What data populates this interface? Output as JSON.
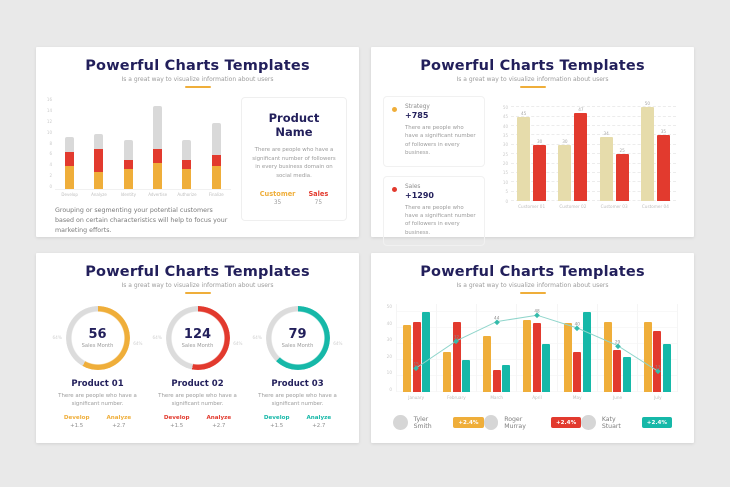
{
  "colors": {
    "navy": "#221F5B",
    "yellow": "#EFAE3A",
    "red": "#E23A2E",
    "tan": "#E6DCAB",
    "teal": "#16B8A8",
    "gray_bar": "#D9D9D9",
    "line": "#8FD5CB",
    "page_bg": "#E9E9E9"
  },
  "header": {
    "title": "Powerful Charts Templates",
    "subtitle": "Is a great way to visualize information about users"
  },
  "slide1": {
    "caption": "Grouping or segmenting your potential customers based on certain characteristics will help to focus your marketing efforts.",
    "panel": {
      "title": "Product Name",
      "description": "There are people who have a significant number of followers in every business domain on social media.",
      "stats": [
        {
          "label": "Customer",
          "value": "35"
        },
        {
          "label": "Sales",
          "value": "75"
        }
      ]
    }
  },
  "slide2": {
    "cards": [
      {
        "label": "Strategy",
        "value": "+785",
        "description": "There are people who have a significant number of followers in every business."
      },
      {
        "label": "Sales",
        "value": "+1290",
        "description": "There are people who have a significant number of followers in every business."
      }
    ]
  },
  "slide3": {
    "gauges": [
      {
        "value": "56",
        "caption": "Sales Month",
        "side_left": "64%",
        "side_right": "64%",
        "product": "Product 01",
        "description": "There are people who have a significant number.",
        "stats": [
          {
            "label": "Develop",
            "value": "+1.5"
          },
          {
            "label": "Analyze",
            "value": "+2.7"
          }
        ]
      },
      {
        "value": "124",
        "caption": "Sales Month",
        "side_left": "64%",
        "side_right": "64%",
        "product": "Product 02",
        "description": "There are people who have a significant number.",
        "stats": [
          {
            "label": "Develop",
            "value": "+1.5"
          },
          {
            "label": "Analyze",
            "value": "+2.7"
          }
        ]
      },
      {
        "value": "79",
        "caption": "Sales Month",
        "side_left": "64%",
        "side_right": "64%",
        "product": "Product 03",
        "description": "There are people who have a significant number.",
        "stats": [
          {
            "label": "Develop",
            "value": "+1.5"
          },
          {
            "label": "Analyze",
            "value": "+2.7"
          }
        ]
      }
    ]
  },
  "slide4": {
    "people": [
      {
        "name": "Tyler Smith",
        "badge": "+2.4%"
      },
      {
        "name": "Roger Murray",
        "badge": "+2.4%"
      },
      {
        "name": "Katy Stuart",
        "badge": "+2.4%"
      }
    ]
  },
  "chart_data": [
    {
      "id": "segmentation-stacked-bar",
      "type": "bar",
      "stacked": true,
      "categories": [
        "Develop",
        "Analyze",
        "Identity",
        "Advertise",
        "Authorize",
        "Finalize"
      ],
      "series": [
        {
          "name": "base-yellow",
          "color": "#EFAE3A",
          "values": [
            4,
            3,
            3.5,
            4.5,
            3.5,
            4
          ]
        },
        {
          "name": "mid-red",
          "color": "#E23A2E",
          "values": [
            2.5,
            4,
            1.5,
            2.5,
            1.5,
            2
          ]
        },
        {
          "name": "top-gray",
          "color": "#D9D9D9",
          "values": [
            2.5,
            2.5,
            3.5,
            7.5,
            3.5,
            5.5
          ]
        }
      ],
      "ylim": [
        0,
        16
      ],
      "yticks": [
        0,
        2,
        4,
        6,
        8,
        10,
        12,
        14,
        16
      ],
      "grid": false
    },
    {
      "id": "strategy-sales-grouped-bar",
      "type": "bar",
      "categories": [
        "Customer 01",
        "Customer 02",
        "Customer 03",
        "Customer 04"
      ],
      "series": [
        {
          "name": "Strategy",
          "color": "#E6DCAB",
          "values": [
            45,
            30,
            34,
            50
          ]
        },
        {
          "name": "Sales",
          "color": "#E23A2E",
          "values": [
            30,
            47,
            25,
            35
          ]
        }
      ],
      "ylim": [
        0,
        55
      ],
      "yticks": [
        0,
        5,
        10,
        15,
        20,
        25,
        30,
        35,
        40,
        45,
        50
      ],
      "grid": true,
      "value_labels": true
    },
    {
      "id": "sales-month-donuts",
      "type": "pie",
      "gauges": [
        {
          "label": "Product 01",
          "value": 56,
          "percent": 58,
          "color": "#EFAE3A"
        },
        {
          "label": "Product 02",
          "value": 124,
          "percent": 53,
          "color": "#E23A2E"
        },
        {
          "label": "Product 03",
          "value": 79,
          "percent": 62,
          "color": "#16B8A8"
        }
      ]
    },
    {
      "id": "monthly-grouped-bar-line",
      "type": "bar",
      "categories": [
        "January",
        "February",
        "March",
        "April",
        "May",
        "June",
        "July"
      ],
      "series": [
        {
          "name": "Tyler Smith",
          "color": "#EFAE3A",
          "values": [
            42,
            25,
            35,
            45,
            43,
            44,
            44
          ]
        },
        {
          "name": "Roger Murray",
          "color": "#E23A2E",
          "values": [
            44,
            44,
            14,
            43,
            25,
            26,
            38
          ]
        },
        {
          "name": "Katy Stuart",
          "color": "#16B8A8",
          "values": [
            50,
            20,
            17,
            30,
            50,
            22,
            30
          ]
        }
      ],
      "line": {
        "name": "trend",
        "color": "#8FD5CB",
        "values": [
          15,
          32,
          44,
          48,
          40,
          29,
          13
        ]
      },
      "ylim": [
        0,
        55
      ],
      "yticks": [
        0,
        10,
        20,
        30,
        40,
        50
      ],
      "grid": true
    }
  ]
}
